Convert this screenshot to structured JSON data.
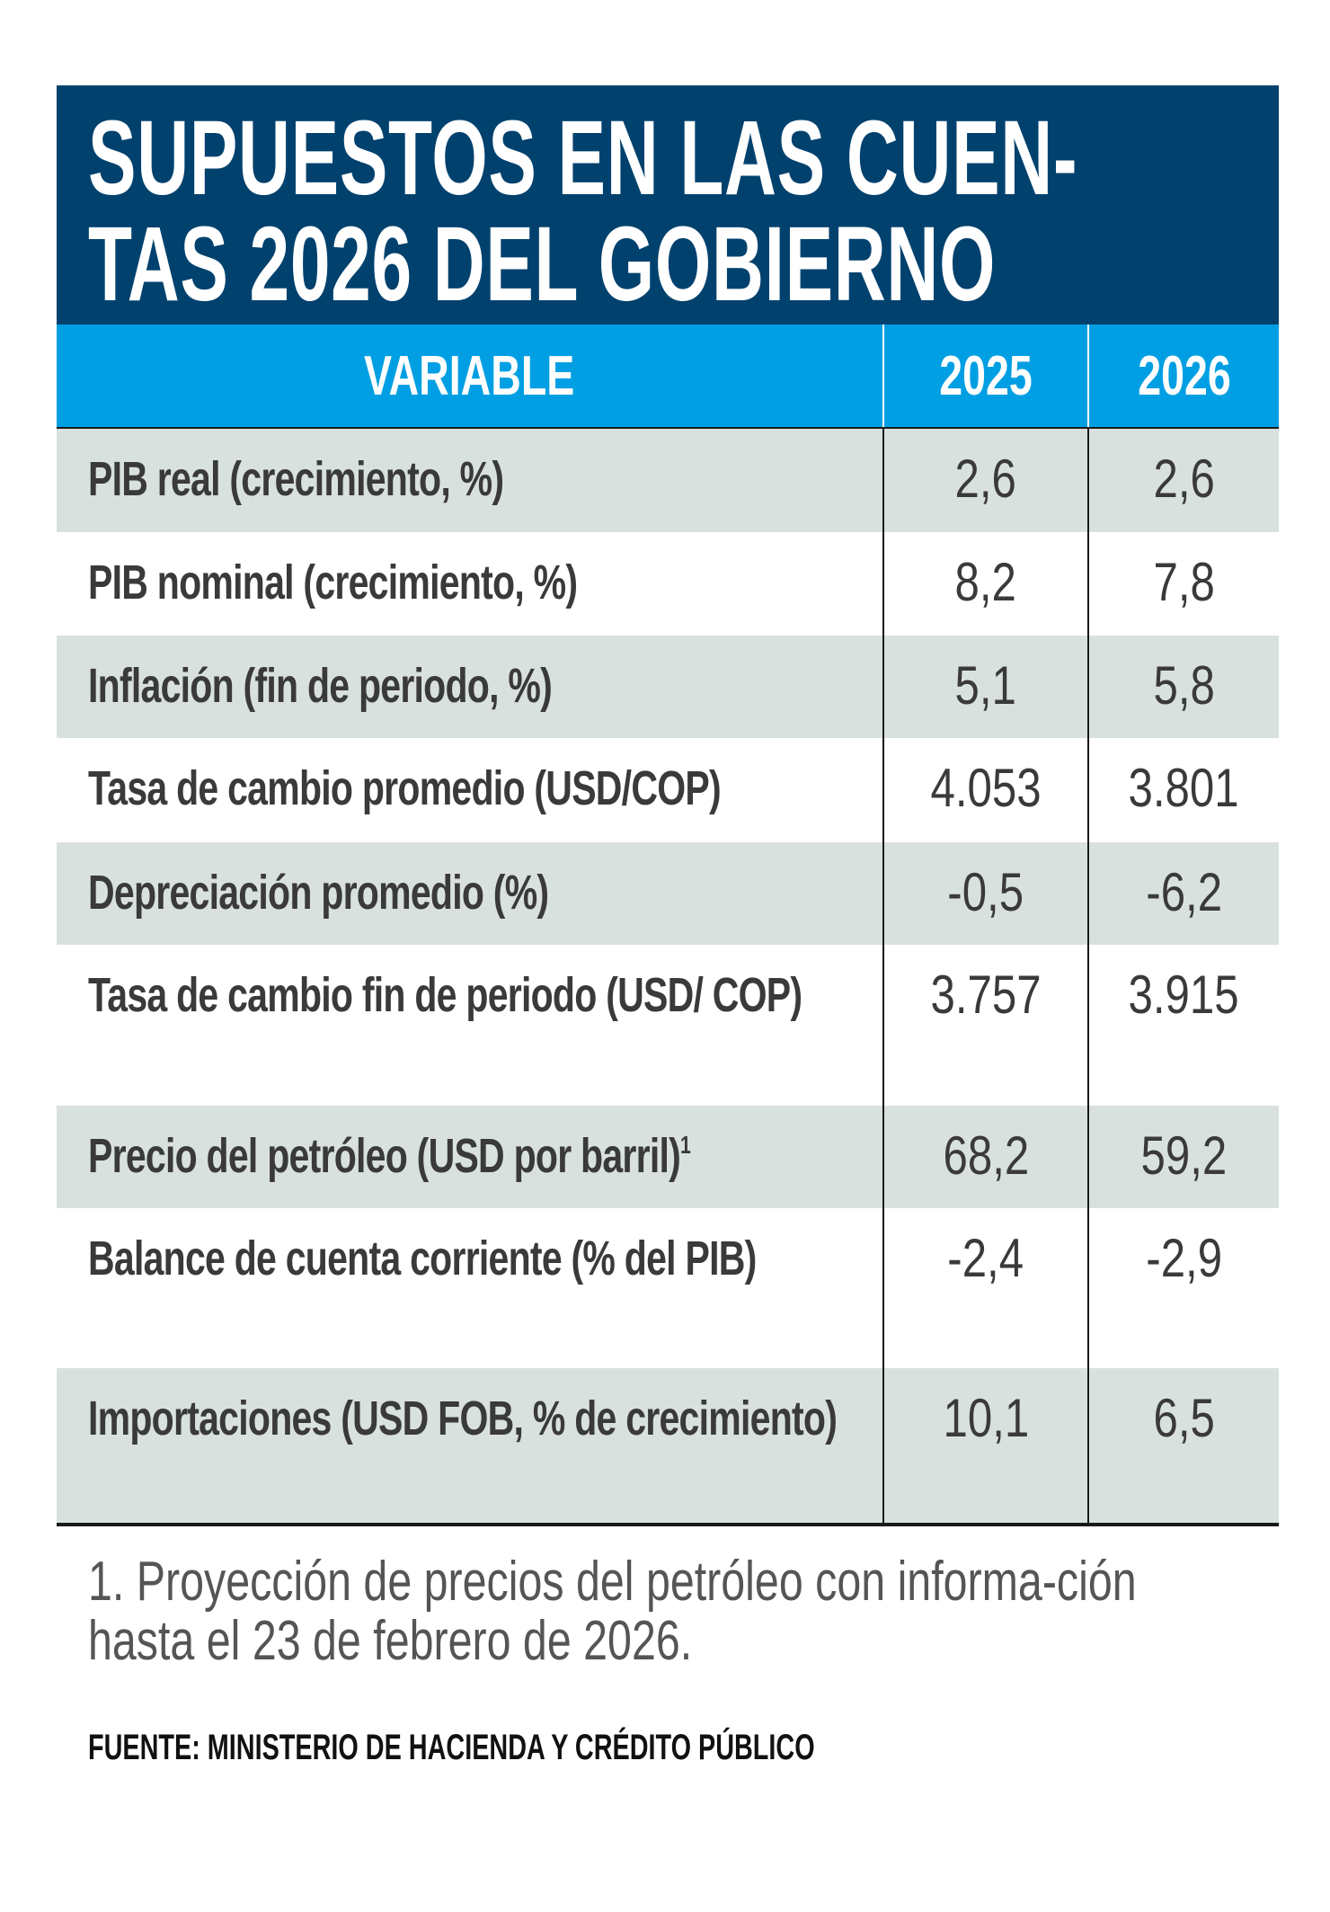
{
  "title": {
    "line1": "SUPUESTOS EN LAS CUEN-",
    "line2": "TAS 2026 DEL GOBIERNO"
  },
  "colors": {
    "title_bg": "#00416e",
    "header_bg": "#009fe3",
    "row_alt": "#d9e1df",
    "text": "#3a3a3a"
  },
  "table": {
    "headers": [
      "VARIABLE",
      "2025",
      "2026"
    ],
    "rows": [
      {
        "label": "PIB real (crecimiento, %)",
        "sup": "",
        "v2025": "2,6",
        "v2026": "2,6"
      },
      {
        "label": "PIB nominal (crecimiento, %)",
        "sup": "",
        "v2025": "8,2",
        "v2026": "7,8"
      },
      {
        "label": "Inflación (fin de periodo, %)",
        "sup": "",
        "v2025": "5,1",
        "v2026": "5,8"
      },
      {
        "label": "Tasa de cambio promedio (USD/COP)",
        "sup": "",
        "v2025": "4.053",
        "v2026": "3.801"
      },
      {
        "label": "Depreciación promedio (%)",
        "sup": "",
        "v2025": "-0,5",
        "v2026": "-6,2"
      },
      {
        "label": "Tasa de cambio fin de periodo (USD/ COP)",
        "sup": "",
        "v2025": "3.757",
        "v2026": "3.915"
      },
      {
        "label": "Precio del petróleo (USD por barril)",
        "sup": "1",
        "v2025": "68,2",
        "v2026": "59,2"
      },
      {
        "label": "Balance de cuenta corriente (% del PIB)",
        "sup": "",
        "v2025": "-2,4",
        "v2026": "-2,9"
      },
      {
        "label": "Importaciones (USD FOB,  % de crecimiento)",
        "sup": "",
        "v2025": "10,1",
        "v2026": "6,5"
      }
    ]
  },
  "footnote": "1. Proyección de precios del petróleo con informa-ción hasta el 23 de febrero de 2026.",
  "source": "FUENTE: MINISTERIO DE HACIENDA Y CRÉDITO PÚBLICO"
}
